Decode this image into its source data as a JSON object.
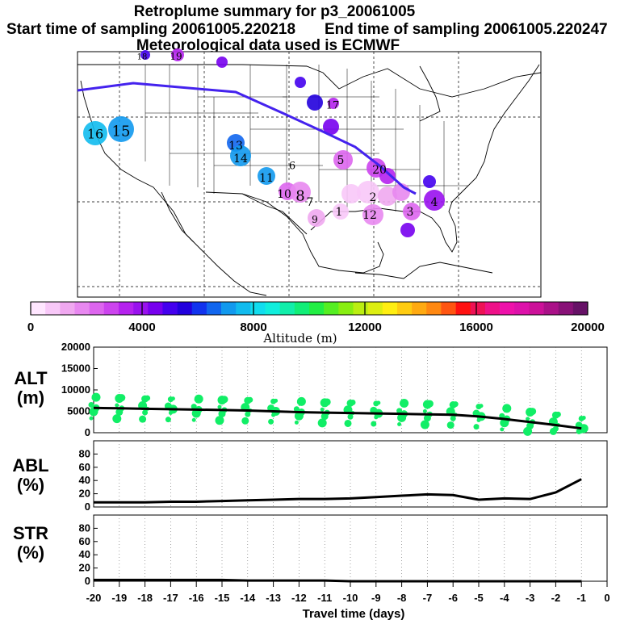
{
  "chart_data": [
    {
      "type": "map",
      "title": "Retroplume summary for p3_20061005",
      "subtitle_start": "Start time of sampling 20061005.220218",
      "subtitle_end": "End time of sampling 20061005.220247",
      "subtitle_met": "Meteorological data used is ECMWF",
      "colorbar": {
        "label": "Altitude (m)",
        "min": 0,
        "max": 20000,
        "ticks": [
          "0",
          "4000",
          "8000",
          "12000",
          "16000",
          "20000"
        ],
        "colors": [
          "#ffe6ff",
          "#f8c8f8",
          "#f0a8f0",
          "#e888f0",
          "#dd66ee",
          "#cc44ee",
          "#b522ee",
          "#9911ee",
          "#7700ee",
          "#4400ee",
          "#2200dd",
          "#1133ee",
          "#1166ee",
          "#1199ee",
          "#11bbee",
          "#11ddee",
          "#11eedd",
          "#11eeaa",
          "#11ee77",
          "#22ee44",
          "#55ee22",
          "#88ee11",
          "#bbee11",
          "#ddee11",
          "#ffee11",
          "#ffcc11",
          "#ffaa11",
          "#ff8811",
          "#ff5511",
          "#ff1111",
          "#ee1155",
          "#ee1188",
          "#ee11aa",
          "#dd11aa",
          "#cc1199",
          "#aa1188",
          "#881177",
          "#661166"
        ]
      },
      "plume_labels": [
        "1",
        "2",
        "3",
        "4",
        "5",
        "6",
        "7",
        "8",
        "9",
        "10",
        "11",
        "12",
        "13",
        "14",
        "15",
        "16",
        "17",
        "18",
        "19",
        "20"
      ],
      "trajectory_color": "#4422ee"
    },
    {
      "type": "scatter",
      "ylabel_line1": "ALT",
      "ylabel_line2": "(m)",
      "ylim": [
        0,
        20000
      ],
      "yticks": [
        "0",
        "5000",
        "10000",
        "15000",
        "20000"
      ],
      "x": [
        -20,
        -19,
        -18,
        -17,
        -16,
        -15,
        -14,
        -13,
        -12,
        -11,
        -10,
        -9,
        -8,
        -7,
        -6,
        -5,
        -4,
        -3,
        -2,
        -1
      ],
      "mean_altitude": [
        5800,
        5700,
        5600,
        5500,
        5400,
        5300,
        5200,
        5000,
        4800,
        4700,
        4600,
        4500,
        4400,
        4300,
        4200,
        3800,
        3200,
        2500,
        1800,
        1000
      ],
      "point_color": "#11ee66"
    },
    {
      "type": "line",
      "ylabel_line1": "ABL",
      "ylabel_line2": "(%)",
      "ylim": [
        0,
        100
      ],
      "yticks": [
        "0",
        "20",
        "40",
        "60",
        "80"
      ],
      "x": [
        -20,
        -19,
        -18,
        -17,
        -16,
        -15,
        -14,
        -13,
        -12,
        -11,
        -10,
        -9,
        -8,
        -7,
        -6,
        -5,
        -4,
        -3,
        -2,
        -1
      ],
      "values": [
        7,
        7,
        7,
        8,
        8,
        9,
        10,
        11,
        12,
        12,
        13,
        15,
        17,
        19,
        18,
        11,
        13,
        12,
        22,
        42
      ]
    },
    {
      "type": "line",
      "ylabel_line1": "STR",
      "ylabel_line2": "(%)",
      "ylim": [
        0,
        100
      ],
      "yticks": [
        "0",
        "20",
        "40",
        "60",
        "80"
      ],
      "x": [
        -20,
        -19,
        -18,
        -17,
        -16,
        -15,
        -14,
        -13,
        -12,
        -11,
        -10,
        -9,
        -8,
        -7,
        -6,
        -5,
        -4,
        -3,
        -2,
        -1
      ],
      "values": [
        2,
        2,
        2,
        2,
        2,
        2,
        1,
        1,
        1,
        1,
        0,
        0,
        0,
        0,
        0,
        0,
        0,
        0,
        0,
        0
      ]
    }
  ],
  "xaxis": {
    "label": "Travel time (days)",
    "ticks": [
      "-20",
      "-19",
      "-18",
      "-17",
      "-16",
      "-15",
      "-14",
      "-13",
      "-12",
      "-11",
      "-10",
      "-9",
      "-8",
      "-7",
      "-6",
      "-5",
      "-4",
      "-3",
      "-2",
      "-1",
      "0"
    ]
  }
}
